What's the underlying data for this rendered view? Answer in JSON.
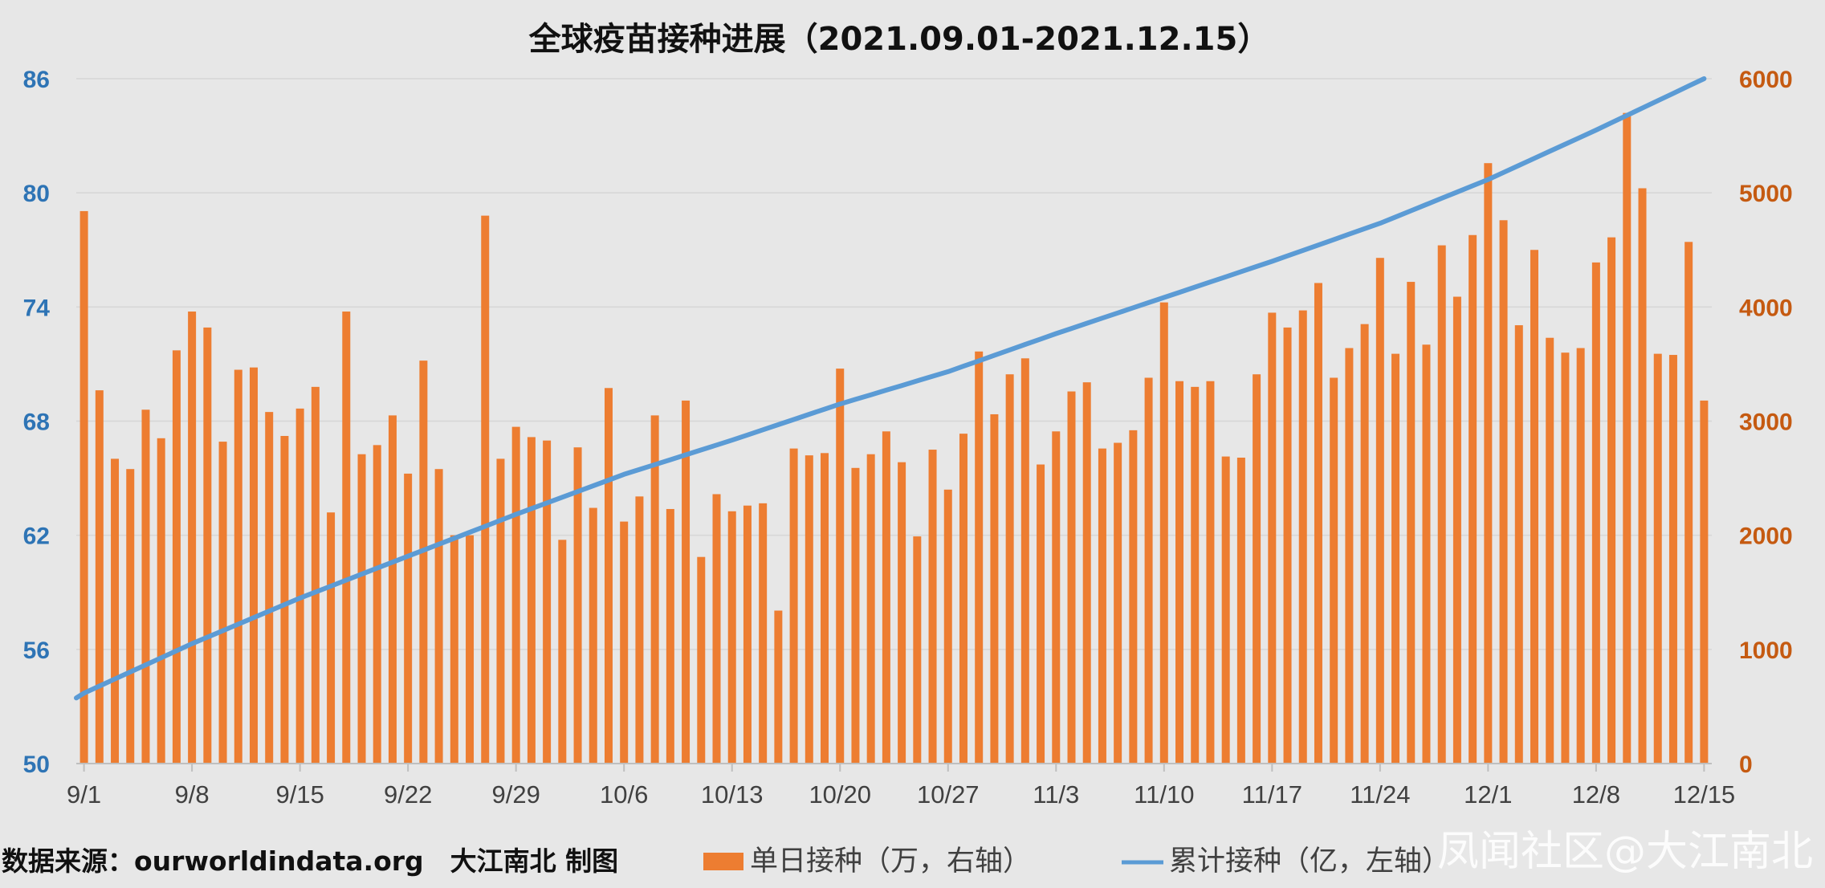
{
  "colors": {
    "background": "#e7e7e7",
    "bar": "#ed7d31",
    "line": "#5b9bd5",
    "left_axis": "#2e74b5",
    "right_axis": "#c55a11",
    "grid": "#d6d6d6"
  },
  "footer": {
    "source": "数据来源：ourworldindata.org　大江南北 制图",
    "watermark": "凤闻社区@大江南北"
  },
  "chart_data": {
    "type": "bar",
    "title": "全球疫苗接种进展（2021.09.01-2021.12.15）",
    "grid": true,
    "legend_position": "bottom",
    "categories_start": "9/1",
    "x_tick_labels": [
      "9/1",
      "9/8",
      "9/15",
      "9/22",
      "9/29",
      "10/6",
      "10/13",
      "10/20",
      "10/27",
      "11/3",
      "11/10",
      "11/17",
      "11/24",
      "12/1",
      "12/8",
      "12/15"
    ],
    "y_left": {
      "ticks": [
        50,
        56,
        62,
        68,
        74,
        80,
        86
      ],
      "range": [
        50,
        86
      ]
    },
    "y_right": {
      "ticks": [
        0,
        1000,
        2000,
        3000,
        4000,
        5000,
        6000
      ],
      "range": [
        0,
        6000
      ]
    },
    "series": [
      {
        "name": "单日接种（万，右轴）",
        "type": "bar",
        "axis": "right",
        "values": [
          4840,
          3270,
          2670,
          2580,
          3100,
          2850,
          3620,
          3960,
          3820,
          2820,
          3450,
          3470,
          3080,
          2870,
          3110,
          3300,
          2200,
          3960,
          2710,
          2790,
          3050,
          2540,
          3530,
          2580,
          2000,
          2000,
          4800,
          2670,
          2950,
          2860,
          2830,
          1960,
          2770,
          2240,
          3290,
          2120,
          2340,
          3050,
          2230,
          3180,
          1810,
          2360,
          2210,
          2260,
          2280,
          1340,
          2760,
          2700,
          2720,
          3460,
          2590,
          2710,
          2910,
          2640,
          1990,
          2750,
          2400,
          2890,
          3610,
          3060,
          3410,
          3550,
          2620,
          2910,
          3260,
          3340,
          2760,
          2810,
          2920,
          3380,
          4040,
          3350,
          3300,
          3350,
          2690,
          2680,
          3410,
          3950,
          3820,
          3970,
          4210,
          3380,
          3640,
          3850,
          4430,
          3590,
          4220,
          3670,
          4540,
          4090,
          4630,
          5260,
          4760,
          3840,
          4500,
          3730,
          3600,
          3640,
          4390,
          4610,
          5700,
          5040,
          3590,
          3580,
          4570,
          3180
        ]
      },
      {
        "name": "累计接种（亿，左轴）",
        "type": "line",
        "axis": "left",
        "dates": [
          "9/1",
          "9/8",
          "9/15",
          "9/22",
          "9/29",
          "10/6",
          "10/13",
          "10/20",
          "10/27",
          "11/3",
          "11/10",
          "11/17",
          "11/24",
          "12/1",
          "12/8",
          "12/15"
        ],
        "values": [
          53.7,
          56.3,
          58.7,
          60.9,
          63.1,
          65.2,
          67.0,
          68.9,
          70.6,
          72.6,
          74.5,
          76.4,
          78.4,
          80.7,
          83.3,
          86.0
        ]
      }
    ]
  }
}
